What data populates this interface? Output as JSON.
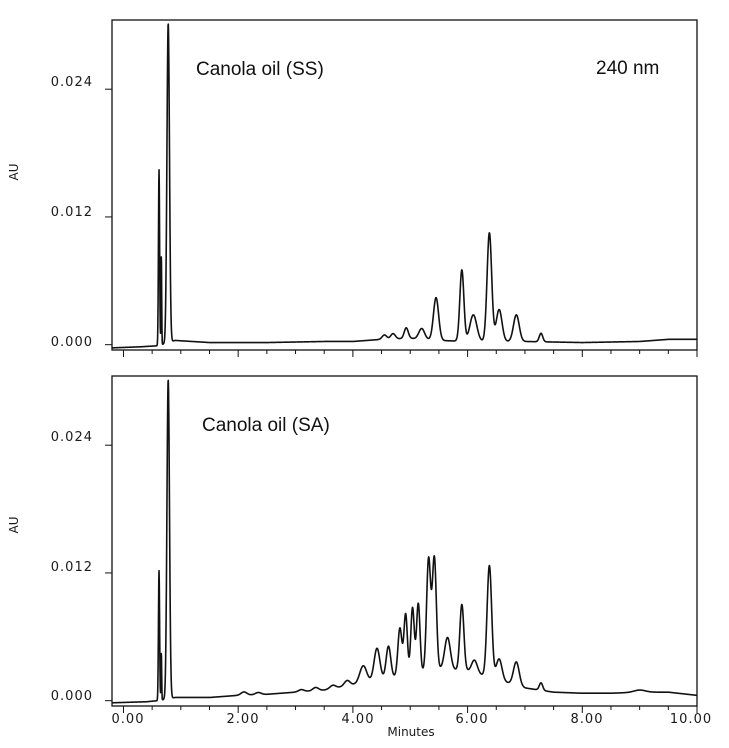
{
  "chart_data": [
    {
      "type": "line",
      "panel": "top",
      "annotations": [
        "Canola oil (SS)",
        "240 nm"
      ],
      "ylabel": "AU",
      "xlabel": "",
      "xlim": [
        -0.2,
        10.0
      ],
      "ylim": [
        -0.0005,
        0.0305
      ],
      "yticks": [
        0.0,
        0.012,
        0.024
      ],
      "ytick_labels": [
        "0.000",
        "0.012",
        "0.024"
      ],
      "xticks": [
        0,
        2,
        4,
        6,
        8,
        10
      ],
      "xtick_labels": [],
      "grid": false,
      "series": [
        {
          "baseline": [
            [
              -0.2,
              -0.0003
            ],
            [
              0.3,
              -0.0002
            ],
            [
              0.6,
              -0.0001
            ],
            [
              0.9,
              0.0004
            ],
            [
              1.5,
              0.0002
            ],
            [
              2.5,
              0.0002
            ],
            [
              3.5,
              0.0003
            ],
            [
              4.0,
              0.0003
            ],
            [
              4.5,
              0.0005
            ],
            [
              5.0,
              0.0006
            ],
            [
              5.5,
              0.0004
            ],
            [
              6.0,
              0.0003
            ],
            [
              7.0,
              0.0003
            ],
            [
              8.0,
              0.0002
            ],
            [
              9.0,
              0.0003
            ],
            [
              9.5,
              0.0005
            ],
            [
              10.0,
              0.0005
            ]
          ],
          "peaks": [
            [
              0.62,
              0.0165,
              0.01
            ],
            [
              0.66,
              0.0085,
              0.006
            ],
            [
              0.78,
              0.03,
              0.022
            ],
            [
              4.55,
              0.0004,
              0.04
            ],
            [
              4.7,
              0.0005,
              0.04
            ],
            [
              4.93,
              0.001,
              0.035
            ],
            [
              5.2,
              0.001,
              0.05
            ],
            [
              5.45,
              0.004,
              0.045
            ],
            [
              5.9,
              0.0067,
              0.035
            ],
            [
              6.1,
              0.0025,
              0.06
            ],
            [
              6.38,
              0.0102,
              0.04
            ],
            [
              6.55,
              0.003,
              0.05
            ],
            [
              6.85,
              0.0025,
              0.05
            ],
            [
              7.28,
              0.0008,
              0.03
            ]
          ]
        }
      ]
    },
    {
      "type": "line",
      "panel": "bottom",
      "annotations": [
        "Canola oil (SA)"
      ],
      "ylabel": "AU",
      "xlabel": "Minutes",
      "xlim": [
        -0.2,
        10.0
      ],
      "ylim": [
        -0.0005,
        0.0305
      ],
      "yticks": [
        0.0,
        0.012,
        0.024
      ],
      "ytick_labels": [
        "0.000",
        "0.012",
        "0.024"
      ],
      "xticks": [
        0,
        2,
        4,
        6,
        8,
        10
      ],
      "xtick_labels": [
        "0.00",
        "2.00",
        "4.00",
        "6.00",
        "8.00",
        "10.00"
      ],
      "grid": false,
      "series": [
        {
          "baseline": [
            [
              -0.2,
              -0.0002
            ],
            [
              0.4,
              -0.0001
            ],
            [
              0.6,
              0.0
            ],
            [
              0.9,
              0.0003
            ],
            [
              1.5,
              0.0003
            ],
            [
              2.0,
              0.0005
            ],
            [
              2.5,
              0.0006
            ],
            [
              3.0,
              0.0008
            ],
            [
              3.5,
              0.001
            ],
            [
              4.0,
              0.0015
            ],
            [
              4.5,
              0.002
            ],
            [
              5.0,
              0.0025
            ],
            [
              5.5,
              0.003
            ],
            [
              6.0,
              0.0028
            ],
            [
              6.5,
              0.002
            ],
            [
              7.0,
              0.0012
            ],
            [
              7.5,
              0.0008
            ],
            [
              8.0,
              0.0007
            ],
            [
              8.5,
              0.0007
            ],
            [
              9.0,
              0.0008
            ],
            [
              9.5,
              0.0008
            ],
            [
              10.0,
              0.0005
            ]
          ],
          "peaks": [
            [
              0.62,
              0.0122,
              0.01
            ],
            [
              0.66,
              0.0045,
              0.006
            ],
            [
              0.78,
              0.03,
              0.022
            ],
            [
              2.1,
              0.0003,
              0.05
            ],
            [
              2.35,
              0.0002,
              0.05
            ],
            [
              3.1,
              0.0002,
              0.05
            ],
            [
              3.35,
              0.0003,
              0.05
            ],
            [
              3.65,
              0.0003,
              0.05
            ],
            [
              3.9,
              0.0005,
              0.05
            ],
            [
              4.18,
              0.0016,
              0.06
            ],
            [
              4.42,
              0.003,
              0.05
            ],
            [
              4.62,
              0.003,
              0.04
            ],
            [
              4.82,
              0.0045,
              0.035
            ],
            [
              4.92,
              0.0057,
              0.03
            ],
            [
              5.04,
              0.0062,
              0.03
            ],
            [
              5.14,
              0.0065,
              0.03
            ],
            [
              5.32,
              0.0105,
              0.035
            ],
            [
              5.42,
              0.0105,
              0.035
            ],
            [
              5.65,
              0.003,
              0.05
            ],
            [
              5.9,
              0.0062,
              0.035
            ],
            [
              6.12,
              0.0012,
              0.05
            ],
            [
              6.38,
              0.0105,
              0.04
            ],
            [
              6.55,
              0.002,
              0.05
            ],
            [
              6.85,
              0.0022,
              0.05
            ],
            [
              7.28,
              0.0007,
              0.03
            ],
            [
              9.0,
              0.0002,
              0.1
            ]
          ]
        }
      ]
    }
  ]
}
